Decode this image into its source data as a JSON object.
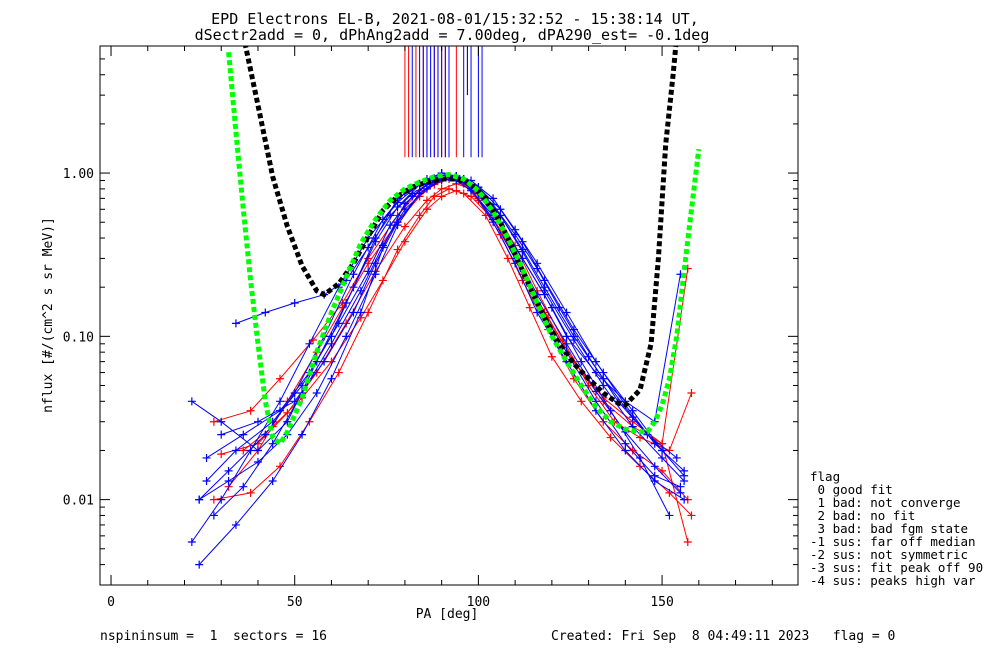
{
  "chart_data": {
    "type": "line",
    "title": "EPD Electrons EL-B, 2021-08-01/15:32:52 - 15:38:14 UT,",
    "subtitle": "dSectr2add = 0, dPhAng2add = 7.00deg, dPA290_est=  -0.1deg",
    "xlabel": "PA [deg]",
    "ylabel": "nflux [#/(cm^2 s sr MeV)]",
    "x_scale": "linear",
    "y_scale": "log",
    "xlim": [
      -3,
      187
    ],
    "ylim": [
      0.003,
      6
    ],
    "x_ticks": [
      {
        "v": 0,
        "label": "0"
      },
      {
        "v": 50,
        "label": "50"
      },
      {
        "v": 100,
        "label": "100"
      },
      {
        "v": 150,
        "label": "150"
      }
    ],
    "y_ticks": [
      {
        "v": 1.0,
        "label": "1.00"
      },
      {
        "v": 0.1,
        "label": "0.10"
      },
      {
        "v": 0.01,
        "label": "0.01"
      }
    ],
    "colors": {
      "red": "#ff0000",
      "blue": "#0000ff",
      "black": "#000000",
      "green": "#00ff00"
    },
    "series": [
      {
        "color": "#000000",
        "style": "dashed-thick",
        "x": [
          36,
          40,
          44,
          48,
          52,
          56,
          58,
          62,
          66,
          70,
          74,
          78,
          82,
          86,
          90,
          94,
          98,
          102,
          106,
          110,
          114,
          118,
          122,
          126,
          130,
          134,
          138,
          140,
          144,
          147,
          149,
          151,
          153,
          154
        ],
        "y": [
          7.0,
          2.6,
          0.95,
          0.47,
          0.27,
          0.19,
          0.18,
          0.21,
          0.28,
          0.41,
          0.59,
          0.72,
          0.82,
          0.88,
          0.92,
          0.92,
          0.86,
          0.7,
          0.5,
          0.32,
          0.2,
          0.13,
          0.09,
          0.068,
          0.055,
          0.045,
          0.039,
          0.038,
          0.047,
          0.09,
          0.3,
          1.5,
          4.0,
          7.0
        ]
      },
      {
        "color": "#00ff00",
        "style": "dashed-thick",
        "x": [
          32,
          34,
          36,
          38,
          40,
          42,
          44,
          46,
          48,
          52,
          56,
          60,
          64,
          68,
          72,
          76,
          80,
          84,
          88,
          92,
          96,
          100,
          104,
          108,
          112,
          116,
          120,
          124,
          128,
          132,
          136,
          140,
          144,
          146,
          148,
          150,
          152,
          154,
          156,
          158,
          160
        ],
        "y": [
          5.5,
          1.8,
          0.6,
          0.22,
          0.09,
          0.04,
          0.024,
          0.022,
          0.026,
          0.042,
          0.08,
          0.14,
          0.23,
          0.37,
          0.52,
          0.68,
          0.8,
          0.88,
          0.95,
          0.98,
          0.92,
          0.78,
          0.58,
          0.4,
          0.26,
          0.16,
          0.1,
          0.07,
          0.05,
          0.037,
          0.03,
          0.027,
          0.026,
          0.026,
          0.03,
          0.038,
          0.055,
          0.1,
          0.25,
          0.6,
          1.4
        ]
      },
      {
        "color": "#ff0000",
        "x": [
          28,
          38,
          46,
          55,
          63,
          70,
          78,
          84,
          88,
          92,
          96,
          100,
          106,
          112,
          119,
          126,
          134,
          142,
          150,
          157
        ],
        "y": [
          0.03,
          0.035,
          0.055,
          0.095,
          0.16,
          0.3,
          0.55,
          0.78,
          0.9,
          0.95,
          0.88,
          0.7,
          0.45,
          0.24,
          0.13,
          0.07,
          0.042,
          0.03,
          0.022,
          0.0055
        ]
      },
      {
        "color": "#ff0000",
        "x": [
          32,
          40,
          48,
          56,
          63,
          70,
          78,
          84,
          88,
          92,
          96,
          100,
          106,
          112,
          119,
          126,
          134,
          142,
          150,
          157
        ],
        "y": [
          0.012,
          0.02,
          0.04,
          0.08,
          0.15,
          0.28,
          0.5,
          0.72,
          0.85,
          0.92,
          0.86,
          0.68,
          0.42,
          0.22,
          0.11,
          0.055,
          0.03,
          0.02,
          0.015,
          0.01
        ]
      },
      {
        "color": "#ff0000",
        "x": [
          30,
          40,
          48,
          56,
          64,
          72,
          80,
          86,
          90,
          94,
          98,
          104,
          110,
          116,
          123,
          130,
          137,
          144,
          152,
          158
        ],
        "y": [
          0.019,
          0.022,
          0.034,
          0.06,
          0.12,
          0.25,
          0.47,
          0.68,
          0.8,
          0.86,
          0.8,
          0.6,
          0.36,
          0.19,
          0.095,
          0.05,
          0.03,
          0.024,
          0.02,
          0.045
        ]
      },
      {
        "color": "#ff0000",
        "x": [
          28,
          38,
          46,
          54,
          62,
          70,
          78,
          84,
          88,
          92,
          96,
          102,
          108,
          114,
          120,
          128,
          136,
          144,
          152,
          158
        ],
        "y": [
          0.01,
          0.011,
          0.016,
          0.03,
          0.06,
          0.14,
          0.34,
          0.55,
          0.72,
          0.8,
          0.75,
          0.55,
          0.3,
          0.15,
          0.075,
          0.04,
          0.024,
          0.016,
          0.011,
          0.008
        ]
      },
      {
        "color": "#ff0000",
        "x": [
          36,
          44,
          52,
          60,
          68,
          74,
          80,
          86,
          90,
          94,
          98,
          104,
          110,
          118,
          126,
          134,
          142,
          150,
          157
        ],
        "y": [
          0.02,
          0.028,
          0.042,
          0.07,
          0.13,
          0.22,
          0.38,
          0.6,
          0.72,
          0.78,
          0.72,
          0.52,
          0.3,
          0.14,
          0.07,
          0.04,
          0.028,
          0.022,
          0.26
        ]
      },
      {
        "color": "#0000ff",
        "x": [
          22,
          30,
          40,
          48,
          56,
          64,
          72,
          78,
          84,
          90,
          94,
          98,
          104,
          110,
          116,
          124,
          132,
          140,
          148,
          156
        ],
        "y": [
          0.04,
          0.03,
          0.02,
          0.03,
          0.07,
          0.16,
          0.38,
          0.62,
          0.85,
          1.0,
          0.95,
          0.8,
          0.5,
          0.28,
          0.14,
          0.07,
          0.035,
          0.02,
          0.013,
          0.01
        ]
      },
      {
        "color": "#0000ff",
        "x": [
          22,
          30,
          38,
          46,
          54,
          62,
          70,
          78,
          84,
          90,
          94,
          98,
          104,
          110,
          116,
          124,
          132,
          140,
          148,
          155
        ],
        "y": [
          0.0055,
          0.01,
          0.02,
          0.04,
          0.09,
          0.2,
          0.4,
          0.66,
          0.86,
          0.97,
          0.94,
          0.8,
          0.52,
          0.3,
          0.16,
          0.08,
          0.04,
          0.022,
          0.014,
          0.012
        ]
      },
      {
        "color": "#0000ff",
        "x": [
          24,
          32,
          42,
          50,
          58,
          66,
          74,
          80,
          86,
          90,
          94,
          98,
          104,
          110,
          116,
          124,
          132,
          140,
          148,
          155
        ],
        "y": [
          0.01,
          0.015,
          0.025,
          0.045,
          0.1,
          0.24,
          0.52,
          0.76,
          0.92,
          1.0,
          0.96,
          0.84,
          0.56,
          0.33,
          0.18,
          0.09,
          0.046,
          0.026,
          0.016,
          0.011
        ]
      },
      {
        "color": "#0000ff",
        "x": [
          24,
          34,
          44,
          52,
          60,
          68,
          74,
          80,
          86,
          90,
          94,
          98,
          104,
          112,
          120,
          128,
          136,
          144,
          152
        ],
        "y": [
          0.004,
          0.007,
          0.013,
          0.025,
          0.055,
          0.14,
          0.35,
          0.65,
          0.85,
          0.92,
          0.9,
          0.78,
          0.55,
          0.3,
          0.15,
          0.07,
          0.035,
          0.018,
          0.008
        ]
      },
      {
        "color": "#0000ff",
        "x": [
          26,
          34,
          44,
          52,
          60,
          66,
          72,
          78,
          84,
          88,
          92,
          96,
          100,
          106,
          112,
          118,
          126,
          134,
          142,
          150
        ],
        "y": [
          0.013,
          0.02,
          0.03,
          0.05,
          0.1,
          0.2,
          0.4,
          0.7,
          0.85,
          0.93,
          0.95,
          0.92,
          0.82,
          0.6,
          0.38,
          0.22,
          0.11,
          0.06,
          0.035,
          0.02
        ]
      },
      {
        "color": "#0000ff",
        "x": [
          28,
          36,
          44,
          52,
          60,
          68,
          74,
          80,
          86,
          90,
          94,
          98,
          104,
          110,
          116,
          122,
          130,
          138,
          146,
          154
        ],
        "y": [
          0.008,
          0.012,
          0.022,
          0.045,
          0.09,
          0.19,
          0.36,
          0.6,
          0.8,
          0.9,
          0.92,
          0.85,
          0.64,
          0.42,
          0.26,
          0.15,
          0.075,
          0.04,
          0.025,
          0.018
        ]
      },
      {
        "color": "#0000ff",
        "x": [
          30,
          40,
          50,
          58,
          66,
          72,
          78,
          84,
          88,
          92,
          96,
          100,
          106,
          112,
          118,
          126,
          134,
          142,
          150,
          156
        ],
        "y": [
          0.025,
          0.03,
          0.04,
          0.07,
          0.14,
          0.28,
          0.5,
          0.75,
          0.88,
          0.95,
          0.92,
          0.78,
          0.55,
          0.34,
          0.2,
          0.1,
          0.055,
          0.032,
          0.02,
          0.014
        ]
      },
      {
        "color": "#0000ff",
        "x": [
          34,
          42,
          50,
          58,
          64,
          70,
          76,
          82,
          88,
          92,
          96,
          100,
          106,
          112,
          118,
          124,
          132,
          140,
          148,
          155
        ],
        "y": [
          0.12,
          0.14,
          0.16,
          0.18,
          0.22,
          0.35,
          0.55,
          0.75,
          0.9,
          0.95,
          0.9,
          0.75,
          0.5,
          0.3,
          0.18,
          0.1,
          0.06,
          0.04,
          0.03,
          0.24
        ]
      },
      {
        "color": "#0000ff",
        "x": [
          26,
          36,
          46,
          54,
          62,
          70,
          76,
          82,
          86,
          90,
          94,
          98,
          104,
          110,
          116,
          124,
          132,
          140,
          148,
          156
        ],
        "y": [
          0.018,
          0.025,
          0.035,
          0.06,
          0.12,
          0.25,
          0.48,
          0.72,
          0.86,
          0.93,
          0.96,
          0.9,
          0.7,
          0.45,
          0.28,
          0.14,
          0.07,
          0.038,
          0.022,
          0.015
        ]
      },
      {
        "color": "#0000ff",
        "x": [
          24,
          32,
          40,
          48,
          56,
          64,
          72,
          78,
          84,
          90,
          94,
          100,
          106,
          112,
          118,
          126,
          134,
          142,
          150,
          156
        ],
        "y": [
          0.01,
          0.013,
          0.017,
          0.025,
          0.045,
          0.1,
          0.24,
          0.48,
          0.75,
          0.92,
          0.96,
          0.82,
          0.55,
          0.33,
          0.19,
          0.095,
          0.05,
          0.028,
          0.018,
          0.013
        ]
      }
    ],
    "pa_ticks": {
      "red": [
        80,
        81,
        83,
        85,
        86,
        88,
        89,
        90,
        91,
        92,
        94
      ],
      "blue": [
        82,
        84,
        85,
        86,
        87,
        88,
        89,
        90,
        91,
        92,
        96,
        98,
        100,
        101
      ],
      "black": [
        97
      ]
    }
  },
  "legend": {
    "heading": "flag",
    "items": [
      " 0 good fit",
      " 1 bad: not converge",
      " 2 bad: no fit",
      " 3 bad: bad fgm state",
      "-1 sus: far off median",
      "-2 sus: not symmetric",
      "-3 sus: fit peak off 90",
      "-4 sus: peaks high var"
    ]
  },
  "footer": {
    "left": "nspininsum =  1  sectors = 16",
    "right": "Created: Fri Sep  8 04:49:11 2023   flag = 0"
  }
}
